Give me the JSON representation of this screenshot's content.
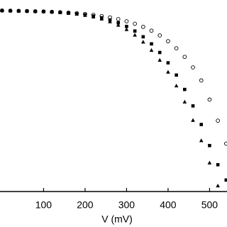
{
  "chart_data": {
    "type": "scatter",
    "xlabel": "V (mV)",
    "x": [
      0,
      20,
      40,
      60,
      80,
      100,
      120,
      140,
      160,
      180,
      200,
      220,
      240,
      260,
      280,
      300,
      320,
      340,
      360,
      380,
      400,
      420,
      440,
      460,
      480,
      500,
      520,
      540
    ],
    "series": [
      {
        "marker": "circle",
        "color": "#000000",
        "values": [
          0.945,
          0.944,
          0.943,
          0.942,
          0.941,
          0.94,
          0.938,
          0.936,
          0.934,
          0.931,
          0.927,
          0.922,
          0.916,
          0.909,
          0.9,
          0.889,
          0.876,
          0.86,
          0.84,
          0.815,
          0.785,
          0.748,
          0.703,
          0.648,
          0.58,
          0.48,
          0.37,
          0.25
        ]
      },
      {
        "marker": "square",
        "color": "#000000",
        "values": [
          0.945,
          0.944,
          0.943,
          0.942,
          0.941,
          0.94,
          0.938,
          0.935,
          0.932,
          0.928,
          0.923,
          0.916,
          0.907,
          0.896,
          0.881,
          0.862,
          0.838,
          0.808,
          0.771,
          0.726,
          0.672,
          0.608,
          0.533,
          0.447,
          0.35,
          0.24,
          0.14,
          0.06
        ]
      },
      {
        "marker": "triangle",
        "color": "#000000",
        "values": [
          0.945,
          0.944,
          0.943,
          0.942,
          0.941,
          0.94,
          0.938,
          0.935,
          0.931,
          0.926,
          0.92,
          0.912,
          0.901,
          0.887,
          0.869,
          0.846,
          0.817,
          0.781,
          0.738,
          0.686,
          0.624,
          0.552,
          0.468,
          0.372,
          0.266,
          0.15,
          0.03,
          null
        ]
      }
    ],
    "xlim": [
      -5,
      542
    ],
    "ylim": [
      0,
      1
    ],
    "xticks": [
      100,
      200,
      300,
      400,
      500
    ]
  }
}
